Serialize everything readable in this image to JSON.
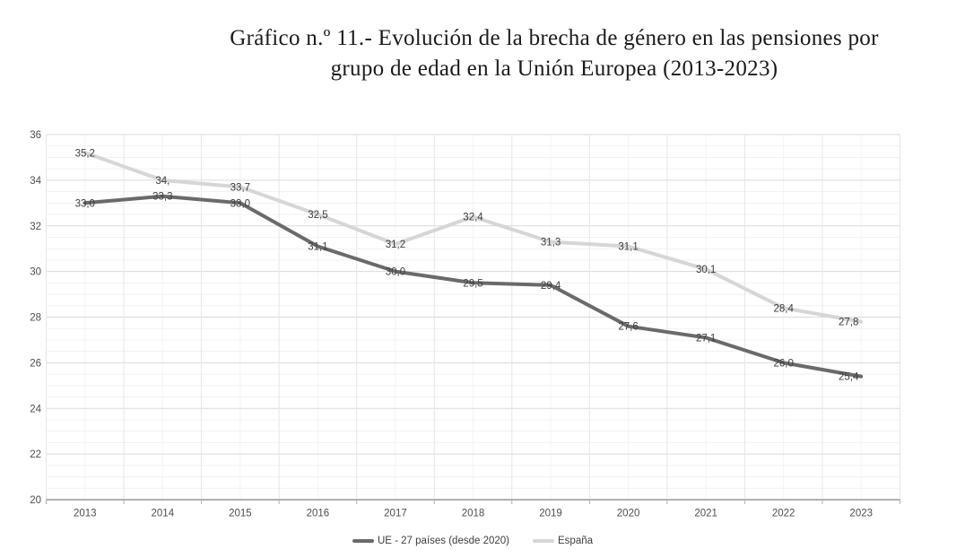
{
  "title": {
    "full": "Gráfico n.º 11.- Evolución de la brecha de género en las pensiones por grupo de edad en la Unión Europea (2013-2023)",
    "line1": "Gráfico n.º 11.- Evolución de la brecha de género en las pensiones por",
    "line2": "grupo de edad en la Unión Europea (2013-2023)"
  },
  "chart_data": {
    "type": "line",
    "categories": [
      "2013",
      "2014",
      "2015",
      "2016",
      "2017",
      "2018",
      "2019",
      "2020",
      "2021",
      "2022",
      "2023"
    ],
    "series": [
      {
        "name": "UE - 27 países (desde 2020)",
        "color": "#6a6a6a",
        "values": [
          33.0,
          33.3,
          33.0,
          31.1,
          30.0,
          29.5,
          29.4,
          27.6,
          27.1,
          26.0,
          25.4
        ],
        "labels": [
          "33,0",
          "33,3",
          "33,0",
          "31,1",
          "30,0",
          "29,5",
          "29,4",
          "27,6",
          "27,1",
          "26,0",
          "25,4"
        ]
      },
      {
        "name": "España",
        "color": "#d6d6d6",
        "values": [
          35.2,
          34.0,
          33.7,
          32.5,
          31.2,
          32.4,
          31.3,
          31.1,
          30.1,
          28.4,
          27.8
        ],
        "labels": [
          "35,2",
          "34,",
          "33,7",
          "32,5",
          "31,2",
          "32,4",
          "31,3",
          "31,1",
          "30,1",
          "28,4",
          "27,8"
        ]
      }
    ],
    "ylim": [
      20,
      36
    ],
    "y_major_step": 2,
    "y_minor_step": 0.5,
    "y_tick_labels": [
      "20",
      "22",
      "24",
      "26",
      "28",
      "30",
      "32",
      "34",
      "36"
    ],
    "grid": true,
    "legend_position": "bottom",
    "colors": {
      "axis_line": "#b0b0b0",
      "grid_major": "#dadada",
      "grid_minor": "#f1f1f1",
      "grid_vertical": "#e6e6e6",
      "grid_vertical_minor": "#f3f3f3",
      "data_label": "#3d3d3d",
      "tick_label": "#4d4d4d"
    }
  }
}
